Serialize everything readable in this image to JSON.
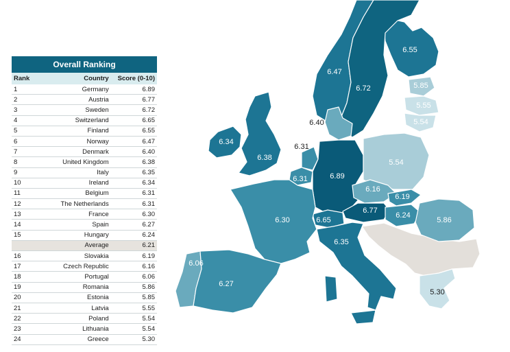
{
  "table": {
    "title": "Overall Ranking",
    "headers": {
      "rank": "Rank",
      "country": "Country",
      "score": "Score (0-10)"
    },
    "rows": [
      {
        "rank": "1",
        "country": "Germany",
        "score": "6.89"
      },
      {
        "rank": "2",
        "country": "Austria",
        "score": "6.77"
      },
      {
        "rank": "3",
        "country": "Sweden",
        "score": "6.72"
      },
      {
        "rank": "4",
        "country": "Switzerland",
        "score": "6.65"
      },
      {
        "rank": "5",
        "country": "Finland",
        "score": "6.55"
      },
      {
        "rank": "6",
        "country": "Norway",
        "score": "6.47"
      },
      {
        "rank": "7",
        "country": "Denmark",
        "score": "6.40"
      },
      {
        "rank": "8",
        "country": "United Kingdom",
        "score": "6.38"
      },
      {
        "rank": "9",
        "country": "Italy",
        "score": "6.35"
      },
      {
        "rank": "10",
        "country": "Ireland",
        "score": "6.34"
      },
      {
        "rank": "11",
        "country": "Belgium",
        "score": "6.31"
      },
      {
        "rank": "12",
        "country": "The Netherlands",
        "score": "6.31"
      },
      {
        "rank": "13",
        "country": "France",
        "score": "6.30"
      },
      {
        "rank": "14",
        "country": "Spain",
        "score": "6.27"
      },
      {
        "rank": "15",
        "country": "Hungary",
        "score": "6.24"
      },
      {
        "rank": "",
        "country": "Average",
        "score": "6.21"
      },
      {
        "rank": "16",
        "country": "Slovakia",
        "score": "6.19"
      },
      {
        "rank": "17",
        "country": "Czech Republic",
        "score": "6.16"
      },
      {
        "rank": "18",
        "country": "Portugal",
        "score": "6.06"
      },
      {
        "rank": "19",
        "country": "Romania",
        "score": "5.86"
      },
      {
        "rank": "20",
        "country": "Estonia",
        "score": "5.85"
      },
      {
        "rank": "21",
        "country": "Latvia",
        "score": "5.55"
      },
      {
        "rank": "22",
        "country": "Poland",
        "score": "5.54"
      },
      {
        "rank": "23",
        "country": "Lithuania",
        "score": "5.54"
      },
      {
        "rank": "24",
        "country": "Greece",
        "score": "5.30"
      }
    ]
  },
  "map": {
    "colors": {
      "very_high": "#0a5a78",
      "high": "#1d7594",
      "upper_mid": "#3a8ea8",
      "mid": "#6aaabd",
      "low": "#a9cdd8",
      "lowest": "#c9e1e8",
      "no_data": "#e3dfda",
      "border": "#ffffff"
    },
    "labels": {
      "finland": "6.55",
      "norway": "6.47",
      "sweden": "6.72",
      "estonia": "5.85",
      "latvia": "5.55",
      "lithuania": "5.54",
      "denmark": "6.40",
      "netherlands": "6.31",
      "uk": "6.38",
      "ireland": "6.34",
      "belgium": "6.31",
      "germany": "6.89",
      "poland": "5.54",
      "czech": "6.16",
      "slovakia": "6.19",
      "austria": "6.77",
      "switzerland": "6.65",
      "hungary": "6.24",
      "romania": "5.86",
      "france": "6.30",
      "italy": "6.35",
      "portugal": "6.06",
      "spain": "6.27",
      "greece": "5.30"
    }
  }
}
